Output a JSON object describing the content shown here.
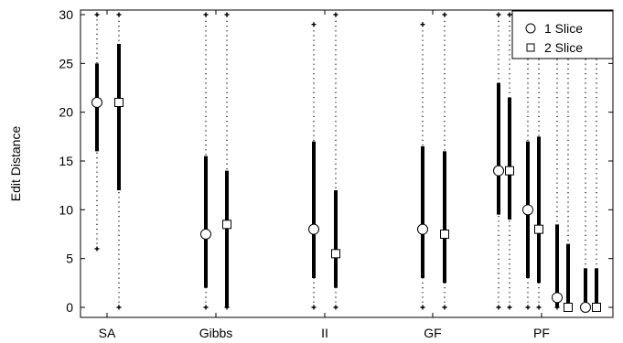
{
  "chart_data": {
    "type": "box",
    "ylabel": "Edit Distance",
    "ylim": [
      0,
      30
    ],
    "yticks": [
      0,
      5,
      10,
      15,
      20,
      25,
      30
    ],
    "categories": [
      "SA",
      "Gibbs",
      "II",
      "GF",
      "PF"
    ],
    "legend": {
      "placement": "top-right",
      "entries": [
        {
          "label": "1 Slice",
          "marker": "circle"
        },
        {
          "label": "2 Slice",
          "marker": "square"
        }
      ]
    },
    "series": [
      {
        "name": "1 Slice",
        "marker": "circle",
        "points": [
          {
            "category": "SA",
            "median": 21,
            "q1": 16,
            "q3": 25,
            "min": 6,
            "max": 30
          },
          {
            "category": "Gibbs",
            "median": 7.5,
            "q1": 2,
            "q3": 15.5,
            "min": 0,
            "max": 30
          },
          {
            "category": "II",
            "median": 8,
            "q1": 3,
            "q3": 17,
            "min": 0,
            "max": 29
          },
          {
            "category": "GF",
            "median": 8,
            "q1": 3,
            "q3": 16.5,
            "min": 0,
            "max": 29
          },
          {
            "category": "PF",
            "sub": 1,
            "median": 14,
            "q1": 9.5,
            "q3": 23,
            "min": 0,
            "max": 30
          },
          {
            "category": "PF",
            "sub": 2,
            "median": 10,
            "q1": 3,
            "q3": 17,
            "min": 0,
            "max": 30
          },
          {
            "category": "PF",
            "sub": 3,
            "median": 1,
            "q1": 0,
            "q3": 8.5,
            "min": 0,
            "max": 30
          },
          {
            "category": "PF",
            "sub": 4,
            "median": 0,
            "q1": 0,
            "q3": 4,
            "min": 0,
            "max": 30
          }
        ]
      },
      {
        "name": "2 Slice",
        "marker": "square",
        "points": [
          {
            "category": "SA",
            "median": 21,
            "q1": 12,
            "q3": 27,
            "min": 0,
            "max": 30
          },
          {
            "category": "Gibbs",
            "median": 8.5,
            "q1": 0,
            "q3": 14,
            "min": 0,
            "max": 30
          },
          {
            "category": "II",
            "median": 5.5,
            "q1": 2,
            "q3": 12,
            "min": 0,
            "max": 30
          },
          {
            "category": "GF",
            "median": 7.5,
            "q1": 2.5,
            "q3": 16,
            "min": 0,
            "max": 30
          },
          {
            "category": "PF",
            "sub": 1,
            "median": 14,
            "q1": 9,
            "q3": 21.5,
            "min": 0,
            "max": 30
          },
          {
            "category": "PF",
            "sub": 2,
            "median": 8,
            "q1": 2.5,
            "q3": 17.5,
            "min": 0,
            "max": 30
          },
          {
            "category": "PF",
            "sub": 3,
            "median": 0,
            "q1": 0,
            "q3": 6.5,
            "min": 0,
            "max": 30
          },
          {
            "category": "PF",
            "sub": 4,
            "median": 0,
            "q1": 0,
            "q3": 4,
            "min": 0,
            "max": 30
          }
        ]
      }
    ]
  }
}
